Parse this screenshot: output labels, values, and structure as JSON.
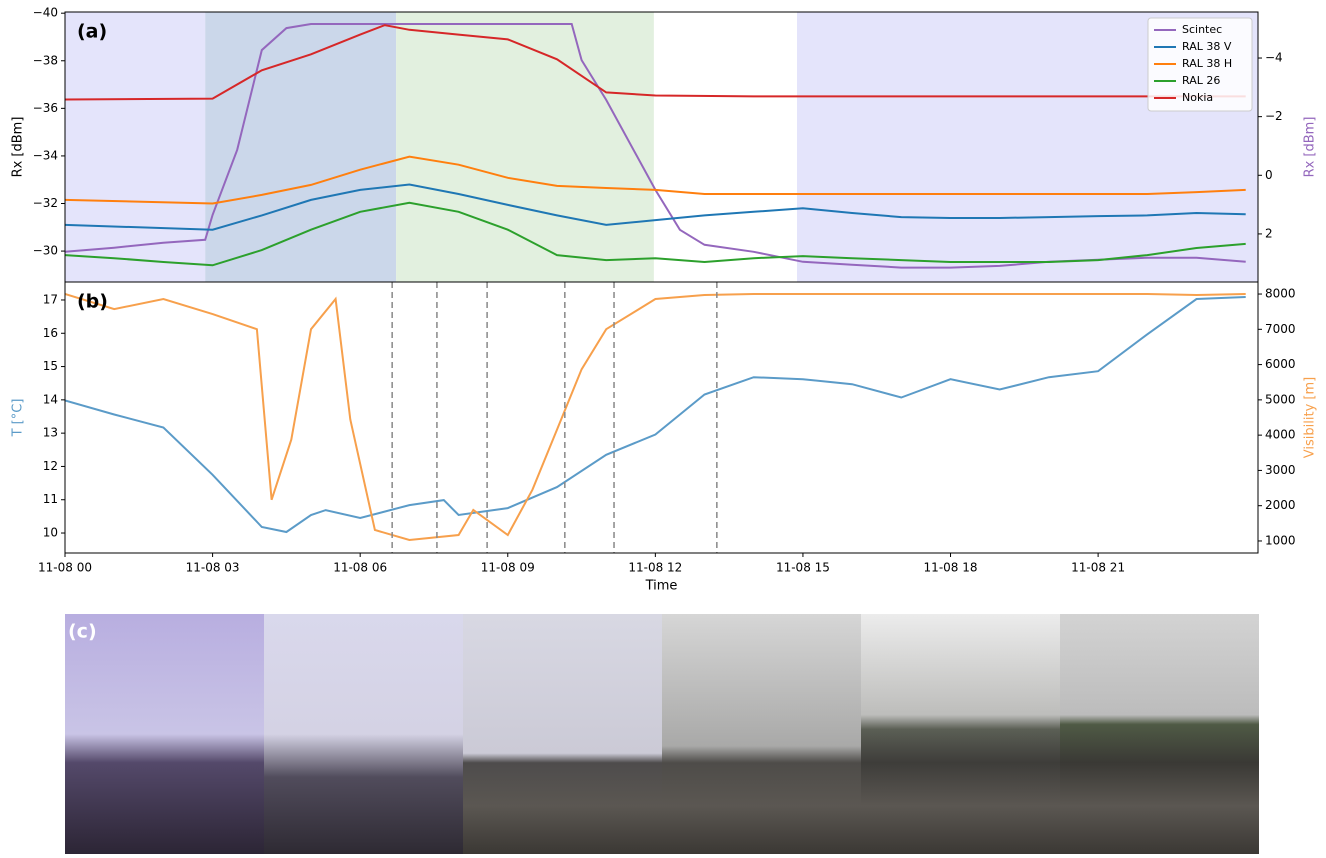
{
  "chart_data": [
    {
      "type": "line",
      "panel_label": "(a)",
      "ylabel": "Rx [dBm]",
      "y2label": "Rx [dBm]",
      "ylabel_color": "#000000",
      "y2label_color": "#9467bd",
      "legend": "upper right",
      "xlim": [
        0,
        24.25
      ],
      "ylim": [
        -40.05,
        -28.7
      ],
      "y_inverted": true,
      "yticks": [
        {
          "value": -40,
          "label": "−40"
        },
        {
          "value": -38,
          "label": "−38"
        },
        {
          "value": -36,
          "label": "−36"
        },
        {
          "value": -34,
          "label": "−34"
        },
        {
          "value": -32,
          "label": "−32"
        },
        {
          "value": -30,
          "label": "−30"
        }
      ],
      "y2lim": [
        -5.57,
        3.64
      ],
      "y2_inverted": true,
      "y2ticks": [
        {
          "value": -4,
          "label": "−4"
        },
        {
          "value": -2,
          "label": "−2"
        },
        0,
        2
      ],
      "spans": [
        {
          "x": [
            0,
            2.85
          ],
          "color": "#e4e4fb"
        },
        {
          "x": [
            2.85,
            6.73
          ],
          "color": "#cbd7ea"
        },
        {
          "x": [
            6.73,
            11.97
          ],
          "color": "#e2f0df"
        },
        {
          "x": [
            14.88,
            24.25
          ],
          "color": "#e4e4fb"
        }
      ],
      "series": [
        {
          "name": "Scintec",
          "color": "#9467bd",
          "axis": "y2",
          "x": [
            0,
            1,
            2,
            2.85,
            3,
            3.5,
            4,
            4.5,
            5,
            6,
            7,
            8,
            9,
            10,
            10.3,
            10.5,
            11,
            12,
            12.5,
            13,
            14,
            15,
            16,
            17,
            18,
            19,
            20,
            21,
            22,
            23,
            24
          ],
          "values": [
            2.61,
            2.47,
            2.3,
            2.2,
            1.35,
            -0.87,
            -4.27,
            -5.02,
            -5.16,
            -5.16,
            -5.16,
            -5.16,
            -5.16,
            -5.16,
            -5.16,
            -3.93,
            -2.57,
            0.5,
            1.86,
            2.37,
            2.61,
            2.95,
            3.05,
            3.15,
            3.15,
            3.09,
            2.95,
            2.88,
            2.81,
            2.81,
            2.95
          ]
        },
        {
          "name": "RAL 38 V",
          "color": "#1f77b4",
          "x": [
            0,
            3,
            4,
            5,
            6,
            7,
            8,
            9,
            10,
            11,
            12,
            13,
            14,
            15,
            16,
            17,
            18,
            19,
            20,
            21,
            22,
            23,
            24
          ],
          "values": [
            -31.1,
            -30.9,
            -31.5,
            -32.15,
            -32.57,
            -32.8,
            -32.4,
            -31.94,
            -31.5,
            -31.1,
            -31.3,
            -31.5,
            -31.65,
            -31.8,
            -31.6,
            -31.43,
            -31.39,
            -31.39,
            -31.43,
            -31.47,
            -31.5,
            -31.6,
            -31.55
          ]
        },
        {
          "name": "RAL 38 H",
          "color": "#ff7f0e",
          "x": [
            0,
            3,
            4,
            5,
            6,
            7,
            8,
            9,
            10,
            11,
            12,
            13,
            14,
            15,
            16,
            17,
            18,
            19,
            20,
            21,
            22,
            23,
            24
          ],
          "values": [
            -32.15,
            -32.0,
            -32.36,
            -32.78,
            -33.42,
            -33.97,
            -33.63,
            -33.08,
            -32.74,
            -32.65,
            -32.57,
            -32.4,
            -32.4,
            -32.4,
            -32.4,
            -32.4,
            -32.4,
            -32.4,
            -32.4,
            -32.4,
            -32.4,
            -32.48,
            -32.57
          ]
        },
        {
          "name": "RAL 26",
          "color": "#2ca02c",
          "x": [
            0,
            1,
            2,
            3,
            4,
            5,
            6,
            7,
            8,
            9,
            10,
            11,
            12,
            13,
            14,
            15,
            16,
            17,
            18,
            19,
            20,
            21,
            22,
            23,
            24
          ],
          "values": [
            -29.83,
            -29.7,
            -29.54,
            -29.4,
            -30.04,
            -30.9,
            -31.65,
            -32.03,
            -31.65,
            -30.9,
            -29.83,
            -29.62,
            -29.7,
            -29.54,
            -29.7,
            -29.79,
            -29.7,
            -29.62,
            -29.54,
            -29.54,
            -29.54,
            -29.62,
            -29.83,
            -30.13,
            -30.3
          ]
        },
        {
          "name": "Nokia",
          "color": "#d62728",
          "x": [
            0,
            3,
            4,
            5,
            6,
            6.5,
            7,
            8,
            9,
            10,
            11,
            12,
            14,
            16,
            18,
            20,
            22,
            24
          ],
          "values": [
            -36.37,
            -36.41,
            -37.6,
            -38.27,
            -39.1,
            -39.5,
            -39.3,
            -39.1,
            -38.9,
            -38.06,
            -36.67,
            -36.54,
            -36.5,
            -36.5,
            -36.5,
            -36.5,
            -36.5,
            -36.5
          ]
        }
      ]
    },
    {
      "type": "line",
      "panel_label": "(b)",
      "xlabel": "Time",
      "ylabel": "T [°C]",
      "y2label": "Visibility [m]",
      "ylabel_color": "#5b9bc8",
      "y2label_color": "#f7a04c",
      "xlim": [
        0,
        24.25
      ],
      "xticks": [
        {
          "value": 0,
          "label": "11-08 00"
        },
        {
          "value": 3,
          "label": "11-08 03"
        },
        {
          "value": 6,
          "label": "11-08 06"
        },
        {
          "value": 9,
          "label": "11-08 09"
        },
        {
          "value": 12,
          "label": "11-08 12"
        },
        {
          "value": 15,
          "label": "11-08 15"
        },
        {
          "value": 18,
          "label": "11-08 18"
        },
        {
          "value": 21,
          "label": "11-08 21"
        }
      ],
      "ylim": [
        9.4,
        17.54
      ],
      "yticks": [
        10,
        11,
        12,
        13,
        14,
        15,
        16,
        17
      ],
      "y2lim": [
        659,
        8341
      ],
      "y2ticks": [
        1000,
        2000,
        3000,
        4000,
        5000,
        6000,
        7000,
        8000
      ],
      "vlines": [
        6.65,
        7.56,
        8.58,
        10.16,
        11.16,
        13.25
      ],
      "series": [
        {
          "name": "T",
          "color": "#5b9bc8",
          "x": [
            0,
            1,
            2,
            3,
            4,
            4.5,
            5,
            5.3,
            6,
            7,
            7.7,
            8,
            9,
            10,
            11,
            12,
            13,
            14,
            15,
            16,
            17,
            18,
            19,
            20,
            21,
            22,
            23,
            24
          ],
          "values": [
            13.98,
            13.56,
            13.17,
            11.75,
            10.18,
            10.03,
            10.54,
            10.69,
            10.45,
            10.84,
            10.99,
            10.54,
            10.75,
            11.38,
            12.35,
            12.96,
            14.16,
            14.68,
            14.62,
            14.47,
            14.07,
            14.62,
            14.31,
            14.68,
            14.86,
            15.97,
            17.03,
            17.09
          ]
        },
        {
          "name": "Visibility",
          "color": "#f7a04c",
          "axis": "y2",
          "x": [
            0,
            1,
            2,
            3,
            3.9,
            4.2,
            4.6,
            5,
            5.5,
            5.8,
            6.3,
            7,
            8,
            8.3,
            9,
            9.5,
            10,
            10.5,
            11,
            12,
            13,
            14,
            16,
            18,
            20,
            22,
            23,
            24
          ],
          "values": [
            8000,
            7573,
            7858,
            7431,
            7004,
            2166,
            3874,
            7004,
            7858,
            4443,
            1312,
            1028,
            1170,
            1882,
            1170,
            2451,
            4158,
            5866,
            7004,
            7858,
            7972,
            8000,
            8000,
            8000,
            8000,
            8000,
            7972,
            8000
          ]
        }
      ]
    }
  ],
  "photos": {
    "label": "(c)"
  }
}
